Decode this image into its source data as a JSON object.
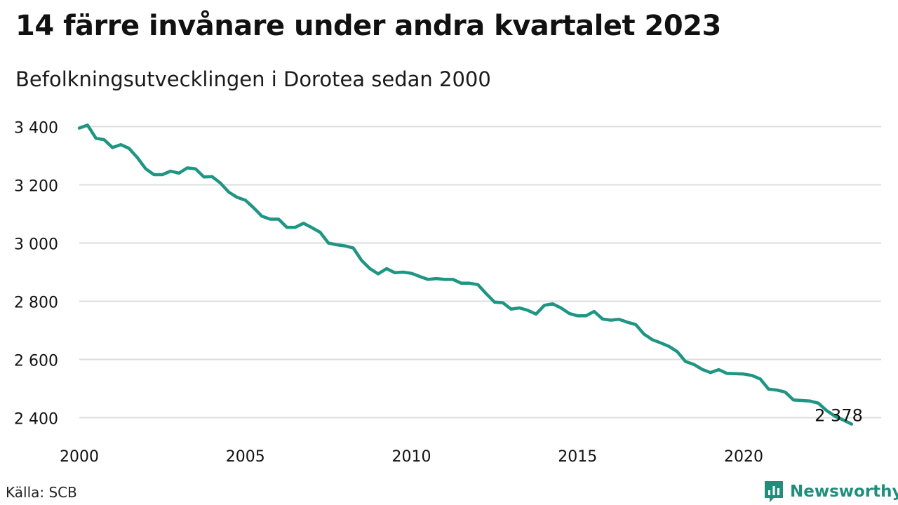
{
  "title": "14 färre invånare under andra kvartalet 2023",
  "subtitle": "Befolkningsutvecklingen i Dorotea sedan 2000",
  "source": "Källa: SCB",
  "brand": {
    "name": "Newsworthy",
    "icon": "newsworthy-logo-icon"
  },
  "colors": {
    "line": "#1f9583",
    "grid": "#dddddd",
    "brand": "#1f8f7c"
  },
  "chart_data": {
    "type": "line",
    "title": "14 färre invånare under andra kvartalet 2023",
    "subtitle": "Befolkningsutvecklingen i Dorotea sedan 2000",
    "xlabel": "",
    "ylabel": "",
    "xlim": [
      2000,
      2024
    ],
    "ylim": [
      2370,
      3420
    ],
    "grid": true,
    "x_ticks": [
      2000,
      2005,
      2010,
      2015,
      2020
    ],
    "x_tick_labels": [
      "2000",
      "2005",
      "2010",
      "2015",
      "2020"
    ],
    "y_ticks": [
      2400,
      2600,
      2800,
      3000,
      3200,
      3400
    ],
    "y_tick_labels": [
      "2 400",
      "2 600",
      "2 800",
      "3 000",
      "3 200",
      "3 400"
    ],
    "end_label": "2 378",
    "series": [
      {
        "x": [
          2000.0,
          2000.25,
          2000.5,
          2000.75,
          2001.0,
          2001.25,
          2001.5,
          2001.75,
          2002.0,
          2002.25,
          2002.5,
          2002.75,
          2003.0,
          2003.25,
          2003.5,
          2003.75,
          2004.0,
          2004.25,
          2004.5,
          2004.75,
          2005.0,
          2005.25,
          2005.5,
          2005.75,
          2006.0,
          2006.25,
          2006.5,
          2006.75,
          2007.0,
          2007.25,
          2007.5,
          2007.75,
          2008.0,
          2008.25,
          2008.5,
          2008.75,
          2009.0,
          2009.25,
          2009.5,
          2009.75,
          2010.0,
          2010.25,
          2010.5,
          2010.75,
          2011.0,
          2011.25,
          2011.5,
          2011.75,
          2012.0,
          2012.25,
          2012.5,
          2012.75,
          2013.0,
          2013.25,
          2013.5,
          2013.75,
          2014.0,
          2014.25,
          2014.5,
          2014.75,
          2015.0,
          2015.25,
          2015.5,
          2015.75,
          2016.0,
          2016.25,
          2016.5,
          2016.75,
          2017.0,
          2017.25,
          2017.5,
          2017.75,
          2018.0,
          2018.25,
          2018.5,
          2018.75,
          2019.0,
          2019.25,
          2019.5,
          2019.75,
          2020.0,
          2020.25,
          2020.5,
          2020.75,
          2021.0,
          2021.25,
          2021.5,
          2021.75,
          2022.0,
          2022.25,
          2022.5,
          2022.75,
          2023.0,
          2023.25
        ],
        "values": [
          3395,
          3405,
          3360,
          3355,
          3328,
          3338,
          3325,
          3293,
          3255,
          3235,
          3235,
          3247,
          3240,
          3258,
          3255,
          3227,
          3228,
          3206,
          3175,
          3157,
          3147,
          3121,
          3092,
          3082,
          3082,
          3054,
          3054,
          3068,
          3053,
          3037,
          3000,
          2994,
          2990,
          2983,
          2940,
          2912,
          2894,
          2912,
          2898,
          2900,
          2896,
          2885,
          2875,
          2878,
          2875,
          2875,
          2862,
          2862,
          2857,
          2826,
          2797,
          2795,
          2773,
          2777,
          2769,
          2756,
          2786,
          2791,
          2777,
          2758,
          2750,
          2750,
          2765,
          2739,
          2735,
          2738,
          2728,
          2720,
          2687,
          2668,
          2657,
          2645,
          2627,
          2593,
          2583,
          2566,
          2555,
          2565,
          2552,
          2551,
          2550,
          2545,
          2533,
          2498,
          2495,
          2488,
          2461,
          2459,
          2457,
          2450,
          2424,
          2405,
          2392,
          2378
        ]
      }
    ]
  }
}
